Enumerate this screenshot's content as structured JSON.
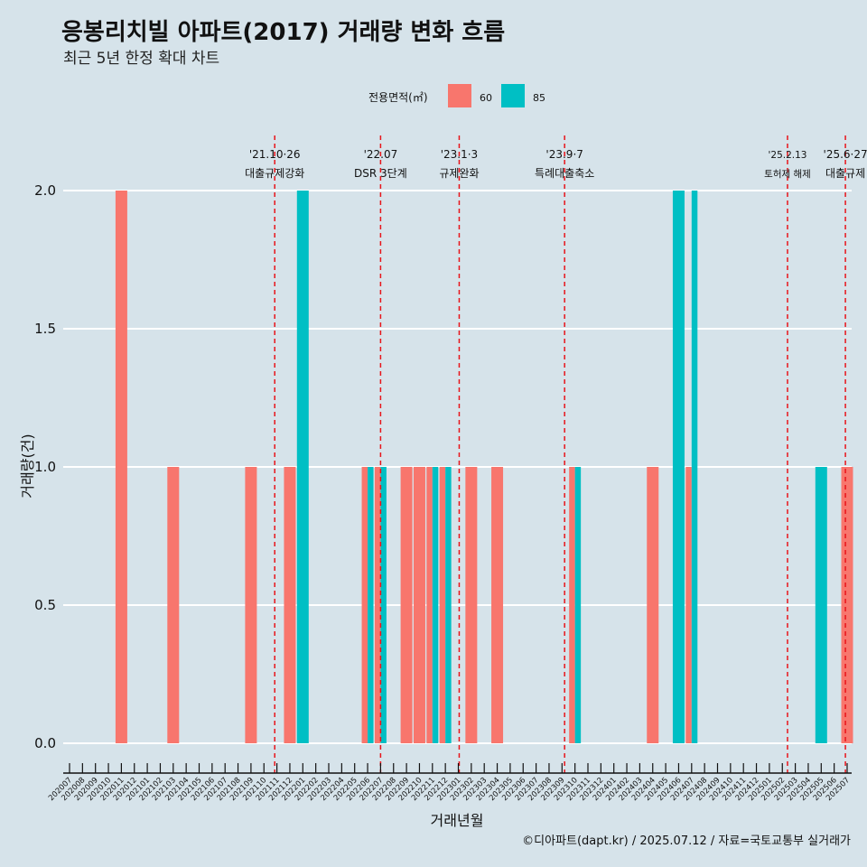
{
  "colors": {
    "background": "#d6e3ea",
    "series_60": "#f8766d",
    "series_85": "#00bfc4",
    "event_line": "#e8141a",
    "grid": "#ffffff"
  },
  "chart_data": {
    "type": "bar",
    "title": "응봉리치빌 아파트(2017) 거래량 변화 흐름",
    "subtitle": "최근 5년 한정 확대 차트",
    "xlabel": "거래년월",
    "ylabel": "거래량(건)",
    "ylim": [
      0,
      2
    ],
    "y_ticks": [
      "0.0",
      "0.5",
      "1.0",
      "1.5",
      "2.0"
    ],
    "grid": "horizontal",
    "legend": {
      "title": "전용면적(㎡)",
      "position": "top",
      "entries": [
        "60",
        "85"
      ]
    },
    "categories": [
      "202007",
      "202008",
      "202009",
      "202010",
      "202011",
      "202012",
      "202101",
      "202102",
      "202103",
      "202104",
      "202105",
      "202106",
      "202107",
      "202108",
      "202109",
      "202110",
      "202111",
      "202112",
      "202201",
      "202202",
      "202203",
      "202204",
      "202205",
      "202206",
      "202207",
      "202208",
      "202209",
      "202210",
      "202211",
      "202212",
      "202301",
      "202302",
      "202303",
      "202304",
      "202305",
      "202306",
      "202307",
      "202308",
      "202309",
      "202310",
      "202311",
      "202312",
      "202401",
      "202402",
      "202403",
      "202404",
      "202405",
      "202406",
      "202407",
      "202408",
      "202409",
      "202410",
      "202411",
      "202412",
      "202501",
      "202502",
      "202503",
      "202504",
      "202505",
      "202506",
      "202507"
    ],
    "series": [
      {
        "name": "60",
        "color": "#f8766d",
        "points": [
          [
            "202011",
            2
          ],
          [
            "202103",
            1
          ],
          [
            "202109",
            1
          ],
          [
            "202112",
            1
          ],
          [
            "202206",
            1
          ],
          [
            "202207",
            1
          ],
          [
            "202209",
            1
          ],
          [
            "202210",
            1
          ],
          [
            "202211",
            1
          ],
          [
            "202212",
            1
          ],
          [
            "202302",
            1
          ],
          [
            "202304",
            1
          ],
          [
            "202310",
            1
          ],
          [
            "202404",
            1
          ],
          [
            "202407",
            1
          ],
          [
            "202507",
            1
          ]
        ]
      },
      {
        "name": "85",
        "color": "#00bfc4",
        "points": [
          [
            "202201",
            2
          ],
          [
            "202206",
            1
          ],
          [
            "202207",
            1
          ],
          [
            "202211",
            1
          ],
          [
            "202212",
            1
          ],
          [
            "202310",
            1
          ],
          [
            "202406",
            2
          ],
          [
            "202407",
            2
          ],
          [
            "202505",
            1
          ]
        ]
      }
    ],
    "events": [
      {
        "date": "2021-10-26",
        "label1": "'21.10·26",
        "label2": "대출규제강화"
      },
      {
        "date": "2022-07-01",
        "label1": "'22.07",
        "label2": "DSR 3단계"
      },
      {
        "date": "2023-01-03",
        "label1": "'23.1·3",
        "label2": "규제완화"
      },
      {
        "date": "2023-09-07",
        "label1": "'23.9·7",
        "label2": "특례대출축소"
      },
      {
        "date": "2025-02-13",
        "label1": "'25.2.13",
        "label2": "토허제 해제",
        "small": true
      },
      {
        "date": "2025-06-27",
        "label1": "'25.6·27",
        "label2": "대출규제"
      }
    ],
    "caption": "©디아파트(dapt.kr) / 2025.07.12 / 자료=국토교통부 실거래가"
  }
}
